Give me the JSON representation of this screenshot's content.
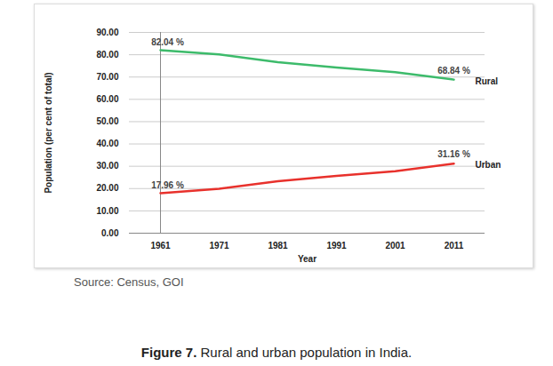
{
  "chart_data": {
    "type": "line",
    "caption": "Figure 7. Rural and urban population in India.",
    "source": "Source: Census, GOI",
    "x_label": "Year",
    "y_label": "Population (per cent of total)",
    "categories": [
      "1961",
      "1971",
      "1981",
      "1991",
      "2001",
      "2011"
    ],
    "series": [
      {
        "name": "Rural",
        "color": "#3dbb6b",
        "values": [
          82.04,
          80.1,
          76.7,
          74.3,
          72.2,
          68.84
        ],
        "value_labels": [
          "82.04 %",
          null,
          null,
          null,
          null,
          "68.84 %"
        ]
      },
      {
        "name": "Urban",
        "color": "#e8312c",
        "values": [
          17.96,
          19.9,
          23.3,
          25.7,
          27.8,
          31.16
        ],
        "value_labels": [
          "17.96 %",
          null,
          null,
          null,
          null,
          "31.16 %"
        ]
      }
    ],
    "ylim": [
      0,
      90
    ],
    "yticks": [
      {
        "value": 0,
        "label": "0.00"
      },
      {
        "value": 10,
        "label": "10.00"
      },
      {
        "value": 20,
        "label": "20.00"
      },
      {
        "value": 30,
        "label": "30.00"
      },
      {
        "value": 40,
        "label": "40.00"
      },
      {
        "value": 50,
        "label": "50.00"
      },
      {
        "value": 60,
        "label": "60.00"
      },
      {
        "value": 70,
        "label": "70.00"
      },
      {
        "value": 80,
        "label": "80.00"
      },
      {
        "value": 90,
        "label": "90.00"
      }
    ],
    "grid": true
  }
}
